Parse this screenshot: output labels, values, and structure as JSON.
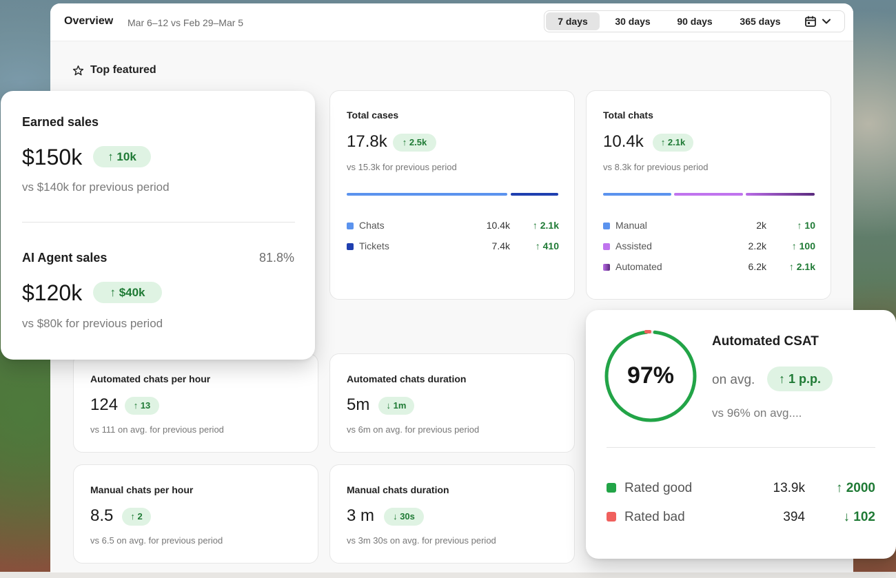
{
  "header": {
    "title": "Overview",
    "date_range": "Mar 6–12 vs Feb 29–Mar 5",
    "ranges": [
      "7 days",
      "30 days",
      "90 days",
      "365 days"
    ],
    "active_range": "7 days"
  },
  "section": {
    "title": "Top featured"
  },
  "earned_sales": {
    "title": "Earned sales",
    "value": "$150k",
    "change": "↑ 10k",
    "comparison": "vs $140k for previous period"
  },
  "ai_agent_sales": {
    "title": "AI Agent sales",
    "share": "81.8%",
    "value": "$120k",
    "change": "↑ $40k",
    "comparison": "vs $80k for previous period"
  },
  "total_cases": {
    "title": "Total cases",
    "value": "17.8k",
    "change": "↑ 2.5k",
    "comparison": "vs 15.3k for previous period",
    "rows": [
      {
        "name": "Chats",
        "value": "10.4k",
        "change": "↑ 2.1k",
        "color": "#5b93ee"
      },
      {
        "name": "Tickets",
        "value": "7.4k",
        "change": "↑ 410",
        "color": "#1f3fb0"
      }
    ]
  },
  "total_chats": {
    "title": "Total chats",
    "value": "10.4k",
    "change": "↑ 2.1k",
    "comparison": "vs  8.3k for previous period",
    "rows": [
      {
        "name": "Manual",
        "value": "2k",
        "change": "↑ 10",
        "color": "#5b93ee"
      },
      {
        "name": "Assisted",
        "value": "2.2k",
        "change": "↑ 100",
        "color": "#c074ee"
      },
      {
        "name": "Automated",
        "value": "6.2k",
        "change": "↑ 2.1k",
        "color": "#6a2f8f"
      }
    ]
  },
  "auto_per_hour": {
    "title": "Automated chats per hour",
    "value": "124",
    "change": "↑ 13",
    "comparison": "vs 111 on avg. for previous period"
  },
  "auto_duration": {
    "title": "Automated chats duration",
    "value": "5m",
    "change": "↓ 1m",
    "comparison": "vs 6m on avg. for previous period"
  },
  "manual_per_hour": {
    "title": "Manual chats per hour",
    "value": "8.5",
    "change": "↑ 2",
    "comparison": "vs 6.5 on avg. for previous period"
  },
  "manual_duration": {
    "title": "Manual chats duration",
    "value": "3 m",
    "change": "↓ 30s",
    "comparison": "vs 3m 30s on avg. for previous period"
  },
  "csat": {
    "title": "Automated CSAT",
    "percent": "97%",
    "percent_value": 97,
    "label": "on avg.",
    "change": "↑ 1 p.p.",
    "comparison": "vs 96% on avg....",
    "rows": [
      {
        "name": "Rated good",
        "value": "13.9k",
        "change": "↑ 2000",
        "color": "#22a447"
      },
      {
        "name": "Rated bad",
        "value": "394",
        "change": "↓ 102",
        "color": "#f0605d"
      }
    ]
  },
  "colors": {
    "accent_green": "#1f7a35",
    "pill_bg": "#dff3e3"
  }
}
